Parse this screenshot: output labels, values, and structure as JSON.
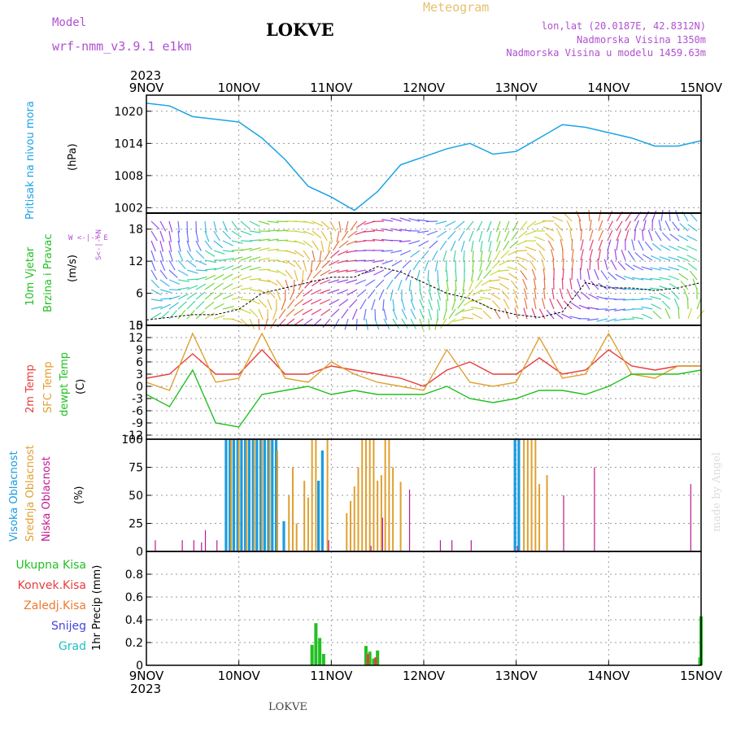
{
  "header": {
    "model_label": "Model",
    "model_name": "wrf-nmm_v3.9.1 e1km",
    "station": "LOKVE",
    "meteogram": "Meteogram",
    "lonlat": "lon,lat (20.0187E, 42.8312N)",
    "elevation": "Nadmorska Visina 1350m",
    "model_elevation": "Nadmorska Visina u modelu 1459.63m",
    "year_top": "2023",
    "year_bottom": "2023",
    "footer_station": "LOKVE",
    "watermark": "made by Angel"
  },
  "x_ticks": [
    "9NOV",
    "10NOV",
    "11NOV",
    "12NOV",
    "13NOV",
    "14NOV",
    "15NOV"
  ],
  "panels": {
    "pressure": {
      "label": "Pritisak na nivou mora",
      "unit": "(hPa)",
      "color": "#1aa3e6",
      "yticks": [
        "1020",
        "1014",
        "1008",
        "1002"
      ]
    },
    "wind": {
      "label1": "10m Vjetar",
      "label2": "Brzina i Pravac",
      "unit": "(m/s)",
      "compass": "W <-|-> E",
      "compass2": "S<-|->N",
      "yticks": [
        "18",
        "12",
        "6",
        "0"
      ]
    },
    "temp": {
      "label_t2": "2m Temp",
      "label_sfc": "SFC Temp",
      "label_dew": "dewpt Temp",
      "unit": "(C)",
      "colors": {
        "t2": "#e83c3c",
        "sfc": "#e0a030",
        "dew": "#22c022"
      },
      "yticks": [
        "15",
        "12",
        "9",
        "6",
        "3",
        "0",
        "-3",
        "-6",
        "-9",
        "-12"
      ]
    },
    "cloud": {
      "label_high": "Visoka Oblacnost",
      "label_mid": "Srednja Oblacnost",
      "label_low": "Niska Oblacnost",
      "unit": "(%)",
      "colors": {
        "high": "#1a9be0",
        "mid": "#e0a030",
        "low": "#c01890"
      },
      "yticks": [
        "100",
        "75",
        "50",
        "25",
        "0"
      ]
    },
    "precip": {
      "legend": [
        "Ukupna Kisa",
        "Konvek.Kisa",
        "Zaledj.Kisa",
        "Snijeg",
        "Grad"
      ],
      "legend_colors": [
        "#22c022",
        "#e83c3c",
        "#f07830",
        "#4444e0",
        "#20c0c0"
      ],
      "unit": "1hr Precip (mm)",
      "yticks": [
        "0.8",
        "0.6",
        "0.4",
        "0.2",
        "0"
      ]
    }
  },
  "chart_data": [
    {
      "type": "line",
      "title": "Pritisak na nivou mora",
      "ylabel": "(hPa)",
      "ylim": [
        1001,
        1023
      ],
      "x_hours": [
        0,
        6,
        12,
        18,
        24,
        30,
        36,
        42,
        48,
        54,
        60,
        66,
        72,
        78,
        84,
        90,
        96,
        102,
        108,
        114,
        120,
        126,
        132,
        138,
        144
      ],
      "series": [
        {
          "name": "Pritisak na nivou mora",
          "values": [
            1021.5,
            1021,
            1019,
            1018.5,
            1018,
            1015,
            1011,
            1006,
            1004,
            1001.5,
            1005,
            1010,
            1011.5,
            1013,
            1014,
            1012,
            1012.5,
            1015,
            1017.5,
            1017,
            1016,
            1015,
            1013.5,
            1013.5,
            1014.5
          ]
        }
      ]
    },
    {
      "type": "line",
      "title": "10m Vjetar",
      "ylabel": "(m/s)",
      "ylim": [
        0,
        21
      ],
      "x_hours": [
        0,
        6,
        12,
        18,
        24,
        30,
        36,
        42,
        48,
        54,
        60,
        66,
        72,
        78,
        84,
        90,
        96,
        102,
        108,
        114,
        120,
        126,
        132,
        138,
        144
      ],
      "series": [
        {
          "name": "Brzina i Pravac",
          "values": [
            1,
            1.5,
            2,
            2,
            3,
            6,
            7,
            8,
            9,
            9,
            11,
            10,
            8,
            6,
            5,
            3,
            2,
            1.5,
            2.5,
            8,
            7,
            7,
            6.5,
            7,
            8
          ]
        }
      ]
    },
    {
      "type": "line",
      "title": "Temp",
      "ylabel": "(C)",
      "ylim": [
        -13,
        15
      ],
      "x_hours": [
        0,
        6,
        12,
        18,
        24,
        30,
        36,
        42,
        48,
        54,
        60,
        66,
        72,
        78,
        84,
        90,
        96,
        102,
        108,
        114,
        120,
        126,
        132,
        138,
        144
      ],
      "series": [
        {
          "name": "2m Temp",
          "values": [
            2,
            3,
            8,
            3,
            3,
            9,
            3,
            3,
            5,
            4,
            3,
            2,
            0,
            4,
            6,
            3,
            3,
            7,
            3,
            4,
            9,
            5,
            4,
            5,
            5
          ]
        },
        {
          "name": "SFC Temp",
          "values": [
            1,
            -1,
            13,
            1,
            2,
            13,
            2,
            1,
            6,
            3,
            1,
            0,
            -1,
            9,
            1,
            0,
            1,
            12,
            2,
            3,
            13,
            3,
            2,
            5,
            5
          ]
        },
        {
          "name": "dewpt Temp",
          "values": [
            -2,
            -5,
            4,
            -9,
            -10,
            -2,
            -1,
            0,
            -2,
            -1,
            -2,
            -2,
            -2,
            0,
            -3,
            -4,
            -3,
            -1,
            -1,
            -2,
            0,
            3,
            3,
            3,
            4
          ]
        }
      ]
    },
    {
      "type": "bar",
      "title": "Oblacnost",
      "ylabel": "(%)",
      "ylim": [
        0,
        100
      ],
      "series": [
        {
          "name": "Visoka Oblacnost",
          "bars": [
            [
              21,
              100
            ],
            [
              22,
              100
            ],
            [
              23,
              100
            ],
            [
              24,
              100
            ],
            [
              25,
              100
            ],
            [
              26,
              100
            ],
            [
              27,
              100
            ],
            [
              28,
              100
            ],
            [
              29,
              100
            ],
            [
              30,
              100
            ],
            [
              31,
              100
            ],
            [
              32,
              100
            ],
            [
              33,
              100
            ],
            [
              34,
              100
            ],
            [
              36,
              27
            ],
            [
              45,
              63
            ],
            [
              46,
              90
            ],
            [
              96,
              100
            ],
            [
              97,
              100
            ]
          ]
        },
        {
          "name": "Srednja Oblacnost",
          "bars": [
            [
              22,
              100
            ],
            [
              24,
              100
            ],
            [
              26,
              100
            ],
            [
              28,
              100
            ],
            [
              30,
              100
            ],
            [
              32,
              100
            ],
            [
              34,
              90
            ],
            [
              37,
              50
            ],
            [
              38,
              75
            ],
            [
              39,
              25
            ],
            [
              41,
              63
            ],
            [
              42,
              48
            ],
            [
              43,
              100
            ],
            [
              44,
              100
            ],
            [
              47,
              100
            ],
            [
              52,
              34
            ],
            [
              53,
              45
            ],
            [
              54,
              58
            ],
            [
              55,
              75
            ],
            [
              56,
              100
            ],
            [
              57,
              100
            ],
            [
              58,
              100
            ],
            [
              59,
              100
            ],
            [
              60,
              63
            ],
            [
              61,
              68
            ],
            [
              62,
              100
            ],
            [
              63,
              100
            ],
            [
              64,
              75
            ],
            [
              66,
              62
            ],
            [
              98,
              100
            ],
            [
              99,
              100
            ],
            [
              100,
              100
            ],
            [
              101,
              100
            ],
            [
              102,
              60
            ],
            [
              104,
              68
            ]
          ]
        },
        {
          "name": "Niska Oblacnost",
          "bars": [
            [
              2,
              10
            ],
            [
              9,
              10
            ],
            [
              12,
              10
            ],
            [
              14,
              8
            ],
            [
              15,
              19
            ],
            [
              18,
              10
            ],
            [
              47,
              10
            ],
            [
              58,
              5
            ],
            [
              61,
              30
            ],
            [
              68,
              55
            ],
            [
              76,
              10
            ],
            [
              79,
              10
            ],
            [
              84,
              10
            ],
            [
              96,
              5
            ],
            [
              108,
              50
            ],
            [
              116,
              75
            ],
            [
              141,
              60
            ]
          ]
        }
      ]
    },
    {
      "type": "bar",
      "title": "1hr Precip",
      "ylabel": "(mm)",
      "ylim": [
        0,
        1.0
      ],
      "series": [
        {
          "name": "Ukupna Kisa",
          "bars": [
            [
              43,
              0.18
            ],
            [
              44,
              0.37
            ],
            [
              45,
              0.24
            ],
            [
              46,
              0.1
            ],
            [
              57,
              0.17
            ],
            [
              58,
              0.12
            ],
            [
              59,
              0.06
            ],
            [
              60,
              0.13
            ],
            [
              143.7,
              0.07
            ],
            [
              144,
              0.43
            ]
          ]
        },
        {
          "name": "Konvek.Kisa",
          "bars": [
            [
              57.5,
              0.1
            ],
            [
              59.5,
              0.07
            ]
          ]
        },
        {
          "name": "Zaledj.Kisa",
          "bars": []
        },
        {
          "name": "Snijeg",
          "bars": []
        },
        {
          "name": "Grad",
          "bars": []
        }
      ]
    }
  ]
}
